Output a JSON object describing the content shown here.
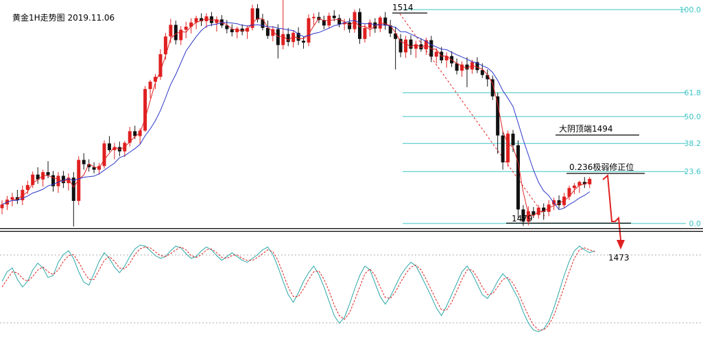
{
  "chart_data": {
    "type": "candlestick",
    "title": "黄金1H走势图 2019.11.06",
    "colors": {
      "up": "#e02020",
      "down": "#111111",
      "ma_fast": "#e02020",
      "ma_slow": "#2a35c8",
      "fib": "#3cc4c4",
      "osc_k": "#2aa7a7",
      "osc_d": "#e02020",
      "arrow": "#e02020"
    },
    "fib_levels": [
      {
        "label": "100.0",
        "price": 1514
      },
      {
        "label": "61.8",
        "price": 1500.4
      },
      {
        "label": "50.0",
        "price": 1496.5
      },
      {
        "label": "38.2",
        "price": 1492.1
      },
      {
        "label": "23.6",
        "price": 1487.5
      },
      {
        "label": "0.0",
        "price": 1479
      }
    ],
    "price_range": [
      1478.5,
      1516
    ],
    "annotations": {
      "high_label": "1514",
      "low_label": "1479",
      "top_label": "大阴顶端1494",
      "retrace_label": "0.236极弱修正位",
      "target_label": "1473"
    },
    "candles": [
      [
        1481.5,
        1482.8,
        1480.5,
        1482.1
      ],
      [
        1482.1,
        1483.5,
        1481.2,
        1482.9
      ],
      [
        1482.9,
        1484.0,
        1481.8,
        1483.3
      ],
      [
        1483.3,
        1484.5,
        1482.2,
        1482.8
      ],
      [
        1482.8,
        1485.2,
        1482.0,
        1484.5
      ],
      [
        1484.5,
        1486.0,
        1483.8,
        1485.3
      ],
      [
        1485.3,
        1487.5,
        1484.8,
        1487.0
      ],
      [
        1487.0,
        1488.2,
        1485.5,
        1486.2
      ],
      [
        1486.2,
        1487.8,
        1485.0,
        1487.4
      ],
      [
        1487.4,
        1489.2,
        1486.4,
        1486.9
      ],
      [
        1486.9,
        1487.6,
        1484.2,
        1485.1
      ],
      [
        1485.1,
        1487.4,
        1484.0,
        1486.8
      ],
      [
        1486.8,
        1487.6,
        1484.8,
        1485.6
      ],
      [
        1485.6,
        1487.2,
        1484.4,
        1486.5
      ],
      [
        1486.5,
        1487.4,
        1478.5,
        1482.7
      ],
      [
        1482.7,
        1490.0,
        1482.0,
        1489.4
      ],
      [
        1489.4,
        1490.5,
        1487.8,
        1488.7
      ],
      [
        1488.7,
        1489.5,
        1487.5,
        1488.2
      ],
      [
        1488.2,
        1489.0,
        1487.2,
        1487.8
      ],
      [
        1487.8,
        1488.9,
        1487.0,
        1488.4
      ],
      [
        1488.4,
        1492.6,
        1488.0,
        1492.1
      ],
      [
        1492.1,
        1493.3,
        1490.7,
        1491.0
      ],
      [
        1491.0,
        1492.2,
        1489.5,
        1491.5
      ],
      [
        1491.5,
        1492.4,
        1490.0,
        1490.8
      ],
      [
        1490.8,
        1492.5,
        1489.9,
        1492.2
      ],
      [
        1492.2,
        1494.8,
        1491.6,
        1494.1
      ],
      [
        1494.1,
        1495.0,
        1492.8,
        1493.3
      ],
      [
        1493.3,
        1494.6,
        1492.0,
        1494.2
      ],
      [
        1494.2,
        1501.5,
        1494.0,
        1501.0
      ],
      [
        1501.0,
        1502.5,
        1499.5,
        1502.2
      ],
      [
        1502.2,
        1503.5,
        1501.0,
        1503.0
      ],
      [
        1503.0,
        1507.5,
        1502.5,
        1506.7
      ],
      [
        1506.7,
        1510.2,
        1505.8,
        1509.6
      ],
      [
        1509.6,
        1512.5,
        1508.5,
        1511.5
      ],
      [
        1511.5,
        1512.2,
        1508.3,
        1509.0
      ],
      [
        1509.0,
        1511.3,
        1508.2,
        1510.7
      ],
      [
        1510.7,
        1512.0,
        1509.3,
        1511.2
      ],
      [
        1511.2,
        1512.6,
        1510.1,
        1511.9
      ],
      [
        1511.9,
        1513.0,
        1510.8,
        1512.6
      ],
      [
        1512.6,
        1513.4,
        1511.3,
        1512.1
      ],
      [
        1512.1,
        1513.4,
        1511.0,
        1512.9
      ],
      [
        1512.9,
        1513.6,
        1511.3,
        1511.8
      ],
      [
        1511.8,
        1512.9,
        1510.4,
        1512.4
      ],
      [
        1512.4,
        1513.1,
        1511.0,
        1511.4
      ],
      [
        1511.4,
        1512.3,
        1510.1,
        1510.8
      ],
      [
        1510.8,
        1511.6,
        1509.6,
        1510.3
      ],
      [
        1510.3,
        1511.2,
        1509.3,
        1510.9
      ],
      [
        1510.9,
        1511.6,
        1509.8,
        1510.4
      ],
      [
        1510.4,
        1511.4,
        1509.2,
        1511.0
      ],
      [
        1511.0,
        1514.8,
        1510.6,
        1514.2
      ],
      [
        1514.2,
        1514.9,
        1511.9,
        1512.4
      ],
      [
        1512.4,
        1513.3,
        1510.6,
        1511.0
      ],
      [
        1511.0,
        1512.2,
        1509.2,
        1509.7
      ],
      [
        1509.7,
        1511.3,
        1508.8,
        1510.8
      ],
      [
        1510.8,
        1511.6,
        1506.0,
        1508.2
      ],
      [
        1508.2,
        1516.0,
        1507.5,
        1510.0
      ],
      [
        1510.0,
        1511.0,
        1508.0,
        1508.7
      ],
      [
        1508.7,
        1510.6,
        1507.8,
        1510.2
      ],
      [
        1510.2,
        1511.1,
        1508.2,
        1508.9
      ],
      [
        1508.9,
        1509.6,
        1507.6,
        1508.6
      ],
      [
        1508.6,
        1513.2,
        1508.0,
        1512.6
      ],
      [
        1512.6,
        1513.4,
        1511.5,
        1512.8
      ],
      [
        1512.8,
        1513.6,
        1511.8,
        1512.3
      ],
      [
        1512.3,
        1513.0,
        1510.8,
        1511.4
      ],
      [
        1511.4,
        1513.5,
        1510.9,
        1513.0
      ],
      [
        1513.0,
        1513.9,
        1512.1,
        1512.6
      ],
      [
        1512.6,
        1513.2,
        1511.1,
        1511.6
      ],
      [
        1511.6,
        1512.5,
        1510.6,
        1511.9
      ],
      [
        1511.9,
        1512.6,
        1510.2,
        1510.8
      ],
      [
        1510.8,
        1514.0,
        1510.2,
        1513.6
      ],
      [
        1513.6,
        1514.2,
        1508.4,
        1509.2
      ],
      [
        1509.2,
        1511.6,
        1508.6,
        1511.0
      ],
      [
        1511.0,
        1512.4,
        1509.6,
        1511.9
      ],
      [
        1511.9,
        1512.6,
        1510.2,
        1510.9
      ],
      [
        1510.9,
        1513.0,
        1510.3,
        1512.7
      ],
      [
        1512.7,
        1513.6,
        1510.7,
        1511.4
      ],
      [
        1511.4,
        1512.3,
        1509.5,
        1510.1
      ],
      [
        1510.1,
        1511.2,
        1504.2,
        1509.2
      ],
      [
        1509.2,
        1510.0,
        1506.2,
        1507.0
      ],
      [
        1507.0,
        1509.7,
        1506.1,
        1509.1
      ],
      [
        1509.1,
        1509.8,
        1506.6,
        1507.6
      ],
      [
        1507.6,
        1508.9,
        1506.1,
        1508.3
      ],
      [
        1508.3,
        1509.3,
        1507.1,
        1507.5
      ],
      [
        1507.5,
        1509.4,
        1506.6,
        1509.0
      ],
      [
        1509.0,
        1509.7,
        1505.4,
        1506.3
      ],
      [
        1506.3,
        1507.7,
        1505.2,
        1507.1
      ],
      [
        1507.1,
        1507.9,
        1505.2,
        1505.7
      ],
      [
        1505.7,
        1507.0,
        1504.5,
        1506.4
      ],
      [
        1506.4,
        1507.2,
        1504.6,
        1505.2
      ],
      [
        1505.2,
        1506.0,
        1503.4,
        1504.0
      ],
      [
        1504.0,
        1505.5,
        1503.0,
        1505.0
      ],
      [
        1505.0,
        1506.2,
        1501.3,
        1504.2
      ],
      [
        1504.2,
        1505.8,
        1503.5,
        1505.4
      ],
      [
        1505.4,
        1506.2,
        1503.6,
        1504.1
      ],
      [
        1504.1,
        1505.2,
        1502.8,
        1503.3
      ],
      [
        1503.3,
        1504.2,
        1501.4,
        1502.6
      ],
      [
        1502.6,
        1503.2,
        1499.2,
        1499.8
      ],
      [
        1499.8,
        1500.4,
        1490.4,
        1493.4
      ],
      [
        1493.4,
        1494.0,
        1487.8,
        1489.0
      ],
      [
        1489.0,
        1494.2,
        1488.3,
        1493.7
      ],
      [
        1493.7,
        1494.3,
        1490.7,
        1491.8
      ],
      [
        1491.8,
        1492.6,
        1479.8,
        1481.3
      ],
      [
        1481.3,
        1482.0,
        1478.6,
        1479.3
      ],
      [
        1479.3,
        1481.8,
        1478.7,
        1481.0
      ],
      [
        1481.0,
        1481.7,
        1479.9,
        1480.4
      ],
      [
        1480.4,
        1482.0,
        1479.8,
        1481.6
      ],
      [
        1481.6,
        1482.3,
        1479.6,
        1480.9
      ],
      [
        1480.9,
        1482.8,
        1480.2,
        1482.1
      ],
      [
        1482.1,
        1483.2,
        1481.2,
        1482.8
      ],
      [
        1482.8,
        1483.6,
        1481.4,
        1482.0
      ],
      [
        1482.0,
        1484.0,
        1481.6,
        1483.4
      ],
      [
        1483.4,
        1485.2,
        1482.8,
        1484.8
      ],
      [
        1484.8,
        1485.6,
        1483.8,
        1485.2
      ],
      [
        1485.2,
        1486.0,
        1484.0,
        1485.8
      ],
      [
        1485.8,
        1486.6,
        1484.8,
        1485.4
      ],
      [
        1485.4,
        1486.6,
        1484.8,
        1486.3
      ]
    ],
    "projection": [
      [
        1486.6,
        1487.4
      ],
      [
        1485.6,
        1477.2
      ],
      [
        1475.6,
        1479.1
      ],
      [
        1477.8,
        1473.0
      ]
    ],
    "oscillator": {
      "k": [
        58,
        68,
        72,
        60,
        52,
        58,
        70,
        77,
        72,
        62,
        64,
        78,
        86,
        90,
        82,
        68,
        57,
        54,
        66,
        79,
        88,
        82,
        73,
        67,
        74,
        84,
        92,
        96,
        95,
        90,
        85,
        82,
        84,
        90,
        95,
        93,
        87,
        82,
        84,
        90,
        94,
        91,
        85,
        80,
        84,
        88,
        84,
        80,
        78,
        82,
        86,
        91,
        94,
        86,
        73,
        58,
        44,
        36,
        46,
        58,
        67,
        74,
        65,
        52,
        37,
        22,
        14,
        20,
        34,
        50,
        64,
        74,
        70,
        56,
        42,
        34,
        42,
        53,
        64,
        72,
        78,
        74,
        64,
        53,
        42,
        30,
        22,
        32,
        44,
        56,
        68,
        74,
        66,
        55,
        44,
        40,
        48,
        58,
        66,
        60,
        50,
        40,
        26,
        14,
        7,
        5,
        8,
        16,
        30,
        47,
        64,
        79,
        90,
        95,
        91,
        88,
        90
      ],
      "d": [
        52,
        60,
        68,
        67,
        61,
        58,
        63,
        70,
        73,
        68,
        65,
        70,
        79,
        85,
        86,
        78,
        68,
        60,
        60,
        70,
        80,
        84,
        79,
        72,
        71,
        77,
        86,
        92,
        94,
        93,
        89,
        85,
        84,
        87,
        91,
        94,
        91,
        85,
        83,
        86,
        91,
        92,
        88,
        83,
        82,
        85,
        86,
        82,
        80,
        80,
        83,
        87,
        91,
        89,
        80,
        66,
        52,
        42,
        42,
        50,
        60,
        68,
        69,
        60,
        48,
        33,
        22,
        18,
        25,
        38,
        52,
        66,
        71,
        64,
        52,
        41,
        40,
        47,
        57,
        66,
        73,
        75,
        70,
        60,
        49,
        38,
        28,
        28,
        36,
        48,
        60,
        70,
        70,
        62,
        52,
        44,
        45,
        52,
        60,
        62,
        56,
        46,
        34,
        22,
        12,
        7,
        7,
        12,
        22,
        37,
        52,
        68,
        82,
        91,
        93,
        91,
        89
      ]
    }
  }
}
